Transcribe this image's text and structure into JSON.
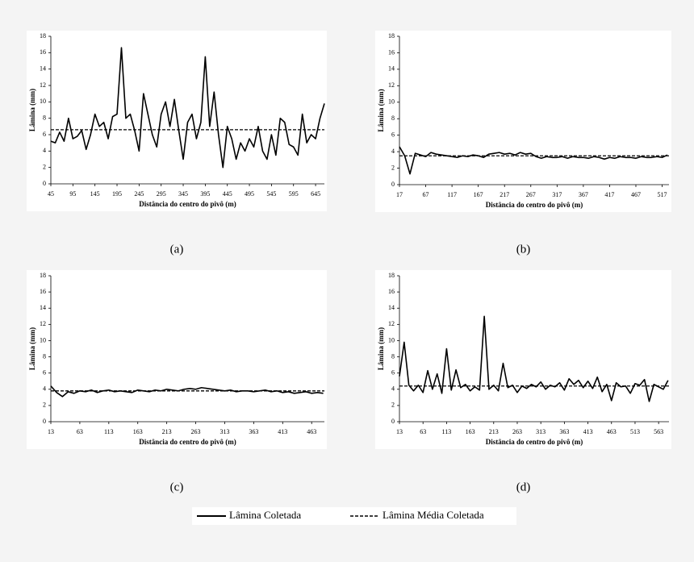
{
  "chart_data": [
    {
      "type": "line",
      "caption": "(a)",
      "x_label": "Distância do centro do pivô (m)",
      "y_label": "Lâmina (mm)",
      "x": [
        45,
        55,
        65,
        75,
        85,
        95,
        105,
        115,
        125,
        135,
        145,
        155,
        165,
        175,
        185,
        195,
        205,
        215,
        225,
        235,
        245,
        255,
        265,
        275,
        285,
        295,
        305,
        315,
        325,
        335,
        345,
        355,
        365,
        375,
        385,
        395,
        405,
        415,
        425,
        435,
        445,
        455,
        465,
        475,
        485,
        495,
        505,
        515,
        525,
        535,
        545,
        555,
        565,
        575,
        585,
        595,
        605,
        615,
        625,
        635,
        645,
        655,
        665
      ],
      "series": [
        {
          "color": "#000000",
          "values": [
            5.2,
            5.0,
            6.3,
            5.2,
            8.0,
            5.5,
            5.8,
            6.5,
            4.2,
            6.0,
            8.5,
            7.0,
            7.5,
            5.5,
            8.2,
            8.5,
            16.6,
            8.0,
            8.5,
            6.5,
            4.0,
            11.0,
            8.5,
            6.0,
            4.5,
            8.5,
            10.0,
            7.0,
            10.3,
            6.5,
            3.0,
            7.5,
            8.5,
            5.5,
            7.5,
            15.5,
            7.0,
            11.2,
            6.0,
            2.0,
            7.0,
            5.5,
            3.0,
            5.0,
            4.0,
            5.5,
            4.5,
            7.0,
            4.0,
            3.0,
            6.0,
            3.5,
            8.0,
            7.5,
            4.8,
            4.5,
            3.5,
            8.5,
            5.0,
            6.0,
            5.5,
            8.0,
            9.8
          ]
        }
      ],
      "average": 6.6,
      "xlim": [
        45,
        665
      ],
      "ylim": [
        0,
        18
      ],
      "xticks": [
        45,
        95,
        145,
        195,
        245,
        295,
        345,
        395,
        445,
        495,
        545,
        595,
        645
      ],
      "yticks": [
        0,
        2,
        4,
        6,
        8,
        10,
        12,
        14,
        16,
        18
      ]
    },
    {
      "type": "line",
      "caption": "(b)",
      "x_label": "Distância do centro do pivô (m)",
      "y_label": "Lâmina (mm)",
      "x": [
        17,
        27,
        37,
        47,
        57,
        67,
        77,
        87,
        97,
        107,
        117,
        127,
        137,
        147,
        157,
        167,
        177,
        187,
        197,
        207,
        217,
        227,
        237,
        247,
        257,
        267,
        277,
        287,
        297,
        307,
        317,
        327,
        337,
        347,
        357,
        367,
        377,
        387,
        397,
        407,
        417,
        427,
        437,
        447,
        457,
        467,
        477,
        487,
        497,
        507,
        517,
        527
      ],
      "series": [
        {
          "color": "#000000",
          "values": [
            4.6,
            3.5,
            1.3,
            3.8,
            3.6,
            3.4,
            3.9,
            3.7,
            3.6,
            3.5,
            3.4,
            3.3,
            3.5,
            3.4,
            3.6,
            3.5,
            3.3,
            3.7,
            3.8,
            3.9,
            3.7,
            3.8,
            3.6,
            3.9,
            3.7,
            3.8,
            3.4,
            3.2,
            3.4,
            3.3,
            3.3,
            3.4,
            3.2,
            3.4,
            3.3,
            3.3,
            3.2,
            3.4,
            3.3,
            3.1,
            3.3,
            3.2,
            3.4,
            3.3,
            3.3,
            3.2,
            3.4,
            3.3,
            3.3,
            3.4,
            3.3,
            3.6
          ]
        }
      ],
      "average": 3.5,
      "xlim": [
        17,
        530
      ],
      "ylim": [
        0,
        18
      ],
      "xticks": [
        17,
        67,
        117,
        167,
        217,
        267,
        317,
        367,
        417,
        467,
        517
      ],
      "yticks": [
        0,
        2,
        4,
        6,
        8,
        10,
        12,
        14,
        16,
        18
      ]
    },
    {
      "type": "line",
      "caption": "(c)",
      "x_label": "Distância do centro do pivô (m)",
      "y_label": "Lâmina (mm)",
      "x": [
        13,
        23,
        33,
        43,
        53,
        63,
        73,
        83,
        93,
        103,
        113,
        123,
        133,
        143,
        153,
        163,
        173,
        183,
        193,
        203,
        213,
        223,
        233,
        243,
        253,
        263,
        273,
        283,
        293,
        303,
        313,
        323,
        333,
        343,
        353,
        363,
        373,
        383,
        393,
        403,
        413,
        423,
        433,
        443,
        453,
        463,
        473,
        483
      ],
      "series": [
        {
          "color": "#000000",
          "values": [
            4.4,
            3.6,
            3.1,
            3.7,
            3.5,
            3.8,
            3.7,
            3.9,
            3.6,
            3.8,
            3.9,
            3.7,
            3.8,
            3.7,
            3.6,
            3.9,
            3.8,
            3.7,
            3.9,
            3.8,
            4.0,
            3.9,
            3.8,
            4.0,
            4.1,
            4.0,
            4.2,
            4.1,
            4.0,
            3.9,
            3.8,
            3.9,
            3.7,
            3.8,
            3.8,
            3.7,
            3.8,
            3.9,
            3.7,
            3.8,
            3.6,
            3.7,
            3.5,
            3.6,
            3.7,
            3.5,
            3.6,
            3.5
          ]
        }
      ],
      "average": 3.8,
      "xlim": [
        13,
        485
      ],
      "ylim": [
        0,
        18
      ],
      "xticks": [
        13,
        63,
        113,
        163,
        213,
        263,
        313,
        363,
        413,
        463
      ],
      "yticks": [
        0,
        2,
        4,
        6,
        8,
        10,
        12,
        14,
        16,
        18
      ]
    },
    {
      "type": "line",
      "caption": "(d)",
      "x_label": "Distância do centro do pivô (m)",
      "y_label": "Lâmina (mm)",
      "x": [
        13,
        23,
        33,
        43,
        53,
        63,
        73,
        83,
        93,
        103,
        113,
        123,
        133,
        143,
        153,
        163,
        173,
        183,
        193,
        203,
        213,
        223,
        233,
        243,
        253,
        263,
        273,
        283,
        293,
        303,
        313,
        323,
        333,
        343,
        353,
        363,
        373,
        383,
        393,
        403,
        413,
        423,
        433,
        443,
        453,
        463,
        473,
        483,
        493,
        503,
        513,
        523,
        533,
        543,
        553,
        563,
        573,
        583
      ],
      "series": [
        {
          "color": "#000000",
          "values": [
            5.6,
            9.8,
            4.5,
            3.8,
            4.5,
            3.6,
            6.3,
            4.0,
            5.9,
            3.5,
            9.0,
            3.9,
            6.4,
            4.2,
            4.6,
            3.8,
            4.3,
            3.9,
            13.0,
            4.0,
            4.5,
            3.8,
            7.2,
            4.2,
            4.5,
            3.6,
            4.4,
            4.1,
            4.6,
            4.3,
            4.9,
            4.0,
            4.5,
            4.3,
            4.8,
            3.9,
            5.3,
            4.6,
            5.1,
            4.2,
            5.0,
            4.1,
            5.5,
            3.7,
            4.6,
            2.6,
            4.8,
            4.3,
            4.4,
            3.5,
            4.7,
            4.5,
            5.2,
            2.5,
            4.6,
            4.3,
            4.0,
            5.1
          ]
        }
      ],
      "average": 4.4,
      "xlim": [
        13,
        585
      ],
      "ylim": [
        0,
        18
      ],
      "xticks": [
        13,
        63,
        113,
        163,
        213,
        263,
        313,
        363,
        413,
        463,
        513,
        563
      ],
      "yticks": [
        0,
        2,
        4,
        6,
        8,
        10,
        12,
        14,
        16,
        18
      ]
    }
  ],
  "legend": [
    "Lâmina Coletada",
    "Lâmina Média Coletada"
  ]
}
